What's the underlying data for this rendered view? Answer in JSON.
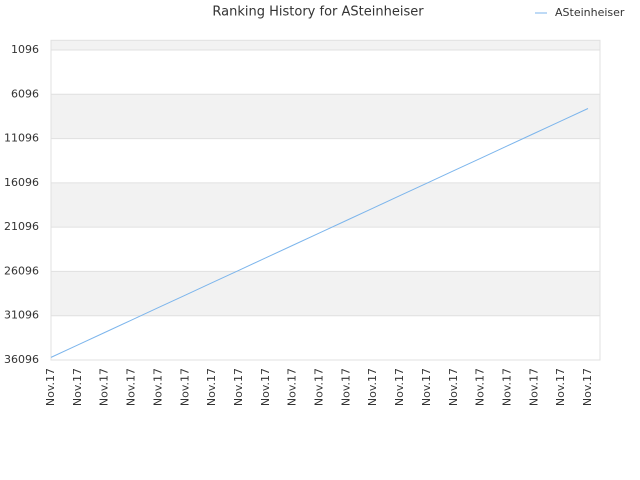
{
  "chart_data": {
    "type": "line",
    "title": "Ranking History for ASteinheiser",
    "categories": [
      "Nov.17",
      "Nov.17",
      "Nov.17",
      "Nov.17",
      "Nov.17",
      "Nov.17",
      "Nov.17",
      "Nov.17",
      "Nov.17",
      "Nov.17",
      "Nov.17",
      "Nov.17",
      "Nov.17",
      "Nov.17",
      "Nov.17",
      "Nov.17",
      "Nov.17",
      "Nov.17",
      "Nov.17",
      "Nov.17",
      "Nov.17"
    ],
    "series": [
      {
        "name": "ASteinheiser",
        "color": "#7cb5ec",
        "values": [
          35800,
          34395,
          32990,
          31585,
          30180,
          28775,
          27370,
          25965,
          24560,
          23155,
          21750,
          20345,
          18940,
          17535,
          16130,
          14725,
          13320,
          11915,
          10510,
          9105,
          7700
        ]
      }
    ],
    "ylim": [
      36096,
      0
    ],
    "yticks": [
      1096,
      6096,
      11096,
      16096,
      21096,
      26096,
      31096,
      36096
    ],
    "grid": true,
    "legend": "top-right"
  }
}
